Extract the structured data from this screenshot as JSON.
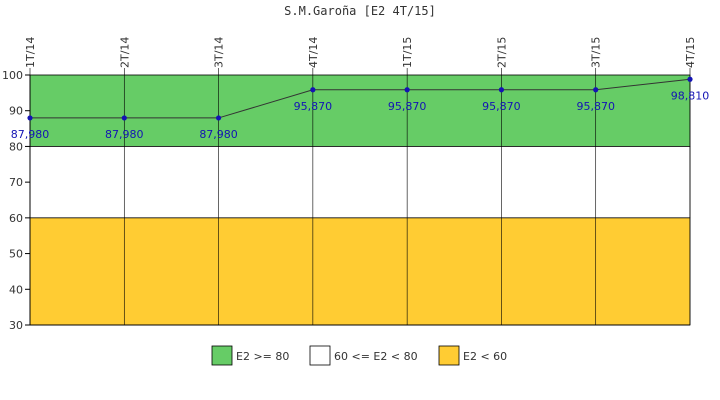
{
  "chart_data": {
    "type": "line",
    "title": "S.M.Garoña [E2 4T/15]",
    "categories": [
      "1T/14",
      "2T/14",
      "3T/14",
      "4T/14",
      "1T/15",
      "2T/15",
      "3T/15",
      "4T/15"
    ],
    "series": [
      {
        "values": [
          87.98,
          87.98,
          87.98,
          95.87,
          95.87,
          95.87,
          95.87,
          98.81
        ],
        "labels": [
          "87,980",
          "87,980",
          "87,980",
          "95,870",
          "95,870",
          "95,870",
          "95,870",
          "98,810"
        ],
        "color": "#1414b4"
      }
    ],
    "ylim": [
      30,
      100
    ],
    "yticks": [
      30,
      40,
      50,
      60,
      70,
      80,
      90,
      100
    ],
    "bands": [
      {
        "from": 80,
        "to": 100,
        "color": "#66cc66",
        "legend": "E2 >= 80"
      },
      {
        "from": 60,
        "to": 80,
        "color": "#ffffff",
        "legend": "60 <= E2 < 80"
      },
      {
        "from": 30,
        "to": 60,
        "color": "#ffcc33",
        "legend": "E2 < 60"
      }
    ],
    "legend_position": "bottom",
    "grid": false
  }
}
